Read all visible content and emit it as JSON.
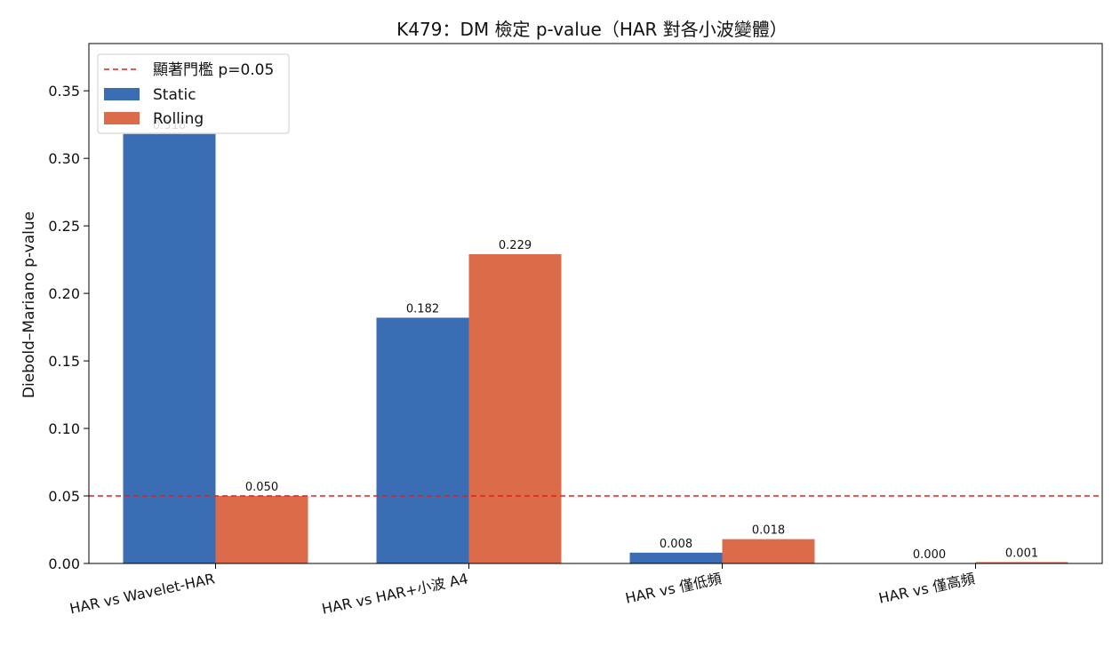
{
  "chart_data": {
    "type": "bar",
    "title": "K479：DM 檢定 p-value（HAR 對各小波變體）",
    "xlabel": "",
    "ylabel": "Diebold–Mariano p-value",
    "categories": [
      "HAR vs Wavelet-HAR",
      "HAR vs HAR+小波 A4",
      "HAR vs 僅低頻",
      "HAR vs 僅高頻"
    ],
    "series": [
      {
        "name": "Static",
        "color": "#3b6db5",
        "values": [
          0.318,
          0.182,
          0.008,
          0.0
        ],
        "labels": [
          "0.318",
          "0.182",
          "0.008",
          "0.000"
        ]
      },
      {
        "name": "Rolling",
        "color": "#dc6b4a",
        "values": [
          0.05,
          0.229,
          0.018,
          0.001
        ],
        "labels": [
          "0.050",
          "0.229",
          "0.018",
          "0.001"
        ]
      }
    ],
    "threshold": {
      "value": 0.05,
      "label": "顯著門檻 p=0.05",
      "color": "#e02020"
    },
    "ylim": [
      0,
      0.385
    ],
    "yticks": [
      0.0,
      0.05,
      0.1,
      0.15,
      0.2,
      0.25,
      0.3,
      0.35
    ],
    "ytick_labels": [
      "0.00",
      "0.05",
      "0.10",
      "0.15",
      "0.20",
      "0.25",
      "0.30",
      "0.35"
    ],
    "grid": false,
    "legend_position": "top-left"
  }
}
